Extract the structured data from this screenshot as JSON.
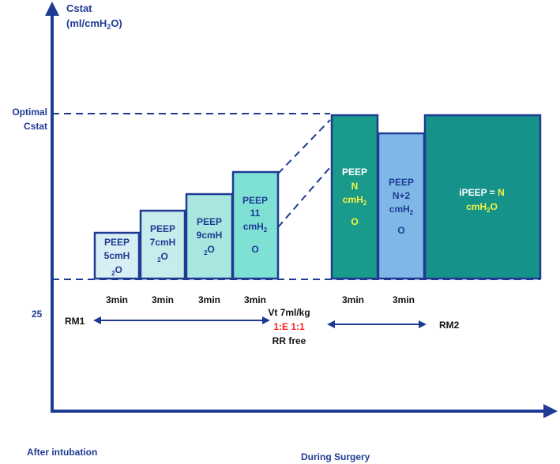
{
  "axes": {
    "y_title_line1": "Cstat",
    "y_title_line2": "(ml/cmH",
    "y_title_sub": "2",
    "y_title_end": "O)",
    "optimal_line1": "Optimal",
    "optimal_line2": "Cstat",
    "y_tick_25": "25",
    "x_left_label": "After intubation",
    "x_right_label": "During Surgery"
  },
  "steps": [
    {
      "line1": "PEEP",
      "line2": "5cmH",
      "line3_sub": "2",
      "line3": "O",
      "duration": "3min",
      "fill": "#d8eef5",
      "text_color": "#1f3a93"
    },
    {
      "line1": "PEEP",
      "line2": "7cmH",
      "line3_sub": "2",
      "line3": "O",
      "duration": "3min",
      "fill": "#c6ecec",
      "text_color": "#1f3a93"
    },
    {
      "line1": "PEEP",
      "line2": "9cmH",
      "line3_sub": "2",
      "line3": "O",
      "duration": "3min",
      "fill": "#a9e6df",
      "text_color": "#1f3a93"
    },
    {
      "line1": "PEEP",
      "line2": "11",
      "line3": "cmH",
      "line3_sub": "2",
      "line4": "O",
      "duration": "3min",
      "fill": "#7fe0d4",
      "text_color": "#1f3a93"
    }
  ],
  "ventilation": {
    "vt": "Vt 7ml/kg",
    "ie": "1:E 1:1",
    "rr": "RR free",
    "ie_color": "#ff2020"
  },
  "rm1": {
    "label": "RM1"
  },
  "rm2": {
    "label": "RM2"
  },
  "right_blocks": {
    "peep_n": {
      "line1": "PEEP",
      "line2": "N",
      "line3": "cmH",
      "line3_sub": "2",
      "line4": "O",
      "duration": "3min",
      "fill": "#1a9a8a"
    },
    "peep_n2": {
      "line1": "PEEP",
      "line2": "N+2",
      "line3": "cmH",
      "line3_sub": "2",
      "line4": "O",
      "duration": "3min",
      "fill": "#7fb8e8"
    },
    "ipeep": {
      "line1a": "iPEEP = ",
      "line1b": "N",
      "line2": "cmH",
      "line2_sub": "2",
      "line2_end": "O",
      "fill": "#15938a"
    }
  },
  "colors": {
    "axis": "#1f3a93",
    "block_border": "#1f3a93",
    "highlight_yellow": "#f4f442",
    "white": "#ffffff"
  }
}
